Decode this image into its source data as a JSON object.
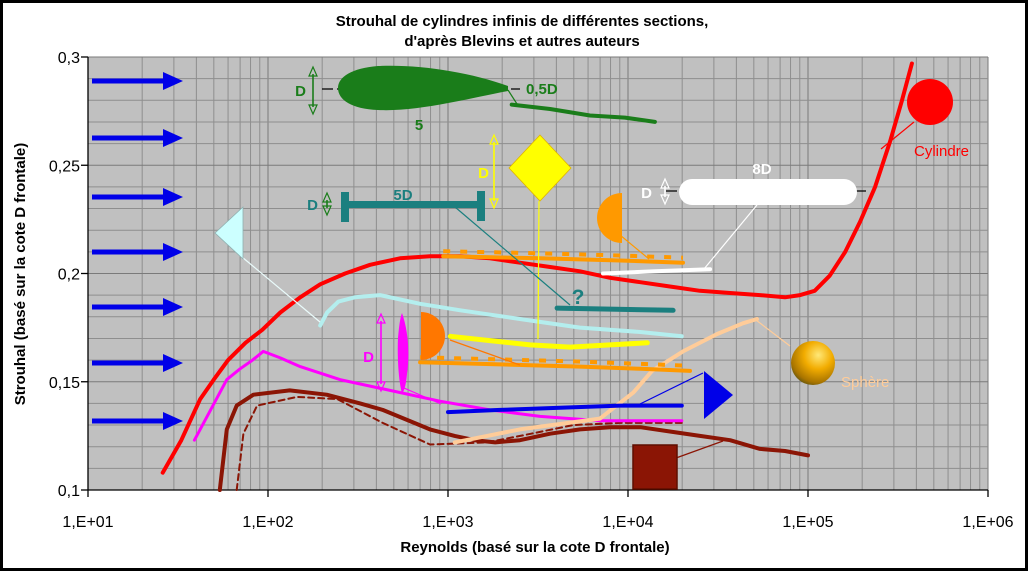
{
  "title": {
    "line1": "Strouhal de cylindres infinis de différentes sections,",
    "line2": "d'après Blevins et autres auteurs"
  },
  "axes": {
    "x": {
      "label": "Reynolds (basé sur la cote D frontale)",
      "scale": "log",
      "ticks": [
        "1,E+01",
        "1,E+02",
        "1,E+03",
        "1,E+04",
        "1,E+05",
        "1,E+06"
      ],
      "range": [
        10,
        1000000
      ]
    },
    "y": {
      "label": "Strouhal (basé sur la cote D frontale)",
      "scale": "linear",
      "ticks": [
        "0,3",
        "0,25",
        "0,2",
        "0,15",
        "0,1"
      ],
      "range": [
        0.1,
        0.3
      ]
    }
  },
  "annotations": {
    "profil_d": "D",
    "profil_longueur": "5",
    "profil_queue": "0,5D",
    "poutre_d": "D",
    "poutre_longueur": "5D",
    "losange_d": "D",
    "capsule_d": "D",
    "capsule_longueur": "8D",
    "plaque_d": "D",
    "inconnu": "?",
    "cylindre": "Cylindre",
    "sphere": "Sphère"
  },
  "colors": {
    "plot_background": "#C0C0C0",
    "grid_minor": "#8E8E8E",
    "grid_major": "#7A7A7A",
    "flow_arrow": "#0000E8",
    "cylindre": "#FF0000",
    "sphere": "#FFCC99",
    "profil": "#1A7D1A",
    "poutre": "#1B7F7F",
    "losange": "#FFFF00",
    "capsule": "#FFFFFF",
    "demi_cylindre": "#FF9900",
    "triangle_pointe_amont": "#B4EEEE",
    "triangle_base_amont": "#0000E8",
    "plaque_mince": "#FF00FF",
    "carre": "#8B1505"
  },
  "chart_data": {
    "type": "line",
    "title": "Strouhal de cylindres infinis de différentes sections, d'après Blevins et autres auteurs",
    "xlabel": "Reynolds (basé sur la cote D frontale)",
    "ylabel": "Strouhal (basé sur la cote D frontale)",
    "x_scale": "log",
    "xlim": [
      10,
      1000000
    ],
    "ylim": [
      0.1,
      0.3
    ],
    "grid": true,
    "legend": "pictograms of each section drawn on the plot with leader lines",
    "series": [
      {
        "name": "carre_pointille",
        "label": "carré (pointillé)",
        "color": "#8B1505",
        "width": 2,
        "dash": "6 4",
        "points": [
          [
            67,
            0.1
          ],
          [
            73,
            0.126
          ],
          [
            87,
            0.139
          ],
          [
            145,
            0.143
          ],
          [
            243,
            0.142
          ],
          [
            434,
            0.131
          ],
          [
            794,
            0.121
          ],
          [
            1650,
            0.122
          ],
          [
            2900,
            0.126
          ],
          [
            4950,
            0.13
          ],
          [
            9000,
            0.131
          ],
          [
            20200,
            0.131
          ]
        ]
      },
      {
        "name": "carre",
        "label": "carré",
        "color": "#8B1505",
        "width": 4,
        "points": [
          [
            54,
            0.1
          ],
          [
            59,
            0.128
          ],
          [
            67,
            0.139
          ],
          [
            83,
            0.144
          ],
          [
            132,
            0.146
          ],
          [
            212,
            0.144
          ],
          [
            325,
            0.14
          ],
          [
            434,
            0.137
          ],
          [
            794,
            0.128
          ],
          [
            1090,
            0.125
          ],
          [
            1410,
            0.123
          ],
          [
            1830,
            0.122
          ],
          [
            2510,
            0.123
          ],
          [
            3690,
            0.126
          ],
          [
            5410,
            0.128
          ],
          [
            7940,
            0.129
          ],
          [
            11700,
            0.129
          ],
          [
            17100,
            0.127
          ],
          [
            25100,
            0.125
          ],
          [
            36900,
            0.123
          ],
          [
            54100,
            0.119
          ],
          [
            74500,
            0.118
          ],
          [
            100000,
            0.116
          ]
        ]
      },
      {
        "name": "plaque_mince",
        "label": "plaque mince",
        "color": "#FF00FF",
        "width": 3,
        "points": [
          [
            39,
            0.123
          ],
          [
            48,
            0.137
          ],
          [
            59,
            0.151
          ],
          [
            70,
            0.156
          ],
          [
            82,
            0.16
          ],
          [
            94,
            0.164
          ],
          [
            117,
            0.161
          ],
          [
            151,
            0.157
          ],
          [
            251,
            0.151
          ],
          [
            476,
            0.146
          ],
          [
            903,
            0.141
          ],
          [
            1710,
            0.137
          ],
          [
            3250,
            0.134
          ],
          [
            6990,
            0.132
          ],
          [
            19900,
            0.132
          ]
        ]
      },
      {
        "name": "sphere",
        "label": "sphère",
        "color": "#FFCC99",
        "width": 4,
        "points": [
          [
            1090,
            0.122
          ],
          [
            2510,
            0.128
          ],
          [
            6990,
            0.133
          ],
          [
            10700,
            0.145
          ],
          [
            13600,
            0.155
          ],
          [
            20200,
            0.164
          ],
          [
            31200,
            0.172
          ],
          [
            43500,
            0.177
          ],
          [
            52100,
            0.179
          ]
        ]
      },
      {
        "name": "triangle_base_amont",
        "label": "triangle (base amont)",
        "color": "#0000E8",
        "width": 4,
        "points": [
          [
            1000,
            0.136
          ],
          [
            1950,
            0.137
          ],
          [
            4190,
            0.138
          ],
          [
            9030,
            0.139
          ],
          [
            19900,
            0.139
          ]
        ]
      },
      {
        "name": "triangle_pointe_amont",
        "label": "triangle (pointe amont)",
        "color": "#B4EEEE",
        "width": 4,
        "points": [
          [
            195,
            0.176
          ],
          [
            213,
            0.182
          ],
          [
            246,
            0.187
          ],
          [
            304,
            0.189
          ],
          [
            419,
            0.19
          ],
          [
            700,
            0.186
          ],
          [
            1170,
            0.183
          ],
          [
            2510,
            0.179
          ],
          [
            5410,
            0.175
          ],
          [
            11700,
            0.173
          ],
          [
            19900,
            0.171
          ]
        ]
      },
      {
        "name": "losange",
        "label": "losange",
        "color": "#FFFF00",
        "width": 5,
        "points": [
          [
            1030,
            0.171
          ],
          [
            1710,
            0.169
          ],
          [
            2860,
            0.167
          ],
          [
            4760,
            0.166
          ],
          [
            7940,
            0.167
          ],
          [
            12800,
            0.168
          ]
        ]
      },
      {
        "name": "cylindre",
        "label": "cylindre",
        "color": "#FF0000",
        "width": 4,
        "points": [
          [
            26,
            0.108
          ],
          [
            33,
            0.123
          ],
          [
            42,
            0.142
          ],
          [
            50,
            0.151
          ],
          [
            60,
            0.16
          ],
          [
            75,
            0.168
          ],
          [
            93,
            0.174
          ],
          [
            117,
            0.182
          ],
          [
            151,
            0.189
          ],
          [
            195,
            0.195
          ],
          [
            268,
            0.2
          ],
          [
            369,
            0.204
          ],
          [
            541,
            0.207
          ],
          [
            794,
            0.208
          ],
          [
            1170,
            0.208
          ],
          [
            1710,
            0.207
          ],
          [
            2510,
            0.205
          ],
          [
            3690,
            0.203
          ],
          [
            5410,
            0.201
          ],
          [
            7940,
            0.198
          ],
          [
            11700,
            0.196
          ],
          [
            17100,
            0.194
          ],
          [
            25100,
            0.192
          ],
          [
            36900,
            0.191
          ],
          [
            54100,
            0.19
          ],
          [
            74500,
            0.189
          ],
          [
            90400,
            0.19
          ],
          [
            109000,
            0.192
          ],
          [
            132000,
            0.199
          ],
          [
            161000,
            0.21
          ],
          [
            195000,
            0.224
          ],
          [
            236000,
            0.24
          ],
          [
            286000,
            0.261
          ],
          [
            333000,
            0.28
          ],
          [
            378000,
            0.297
          ]
        ]
      },
      {
        "name": "demi_cylindre_face_plane",
        "label": "demi-cylindre (face plane amont)",
        "color": "#FF9900",
        "width": 4,
        "railroad": true,
        "points": [
          [
            700,
            0.159
          ],
          [
            1950,
            0.158
          ],
          [
            5410,
            0.157
          ],
          [
            11700,
            0.156
          ],
          [
            22100,
            0.155
          ]
        ]
      },
      {
        "name": "demi_cylindre_face_courbe",
        "label": "demi-cylindre (face courbe amont)",
        "color": "#FF9900",
        "width": 4,
        "railroad": true,
        "points": [
          [
            940,
            0.208
          ],
          [
            3240,
            0.207
          ],
          [
            9030,
            0.206
          ],
          [
            20200,
            0.205
          ]
        ]
      },
      {
        "name": "poutre_en_i_5d",
        "label": "poutre en I 5D (?)",
        "color": "#1B7F7F",
        "width": 5,
        "points": [
          [
            4040,
            0.184
          ],
          [
            17800,
            0.183
          ]
        ]
      },
      {
        "name": "capsule_8d",
        "label": "profilé oblong 8D",
        "color": "#FFFFFF",
        "width": 4,
        "points": [
          [
            7260,
            0.2
          ],
          [
            14100,
            0.201
          ],
          [
            28600,
            0.202
          ]
        ]
      },
      {
        "name": "profil_allonge",
        "label": "profilé 5 / 0,5D",
        "color": "#1A7D1A",
        "width": 4,
        "points": [
          [
            2260,
            0.278
          ],
          [
            3690,
            0.276
          ],
          [
            6150,
            0.273
          ],
          [
            9620,
            0.272
          ],
          [
            14100,
            0.27
          ]
        ]
      }
    ]
  }
}
